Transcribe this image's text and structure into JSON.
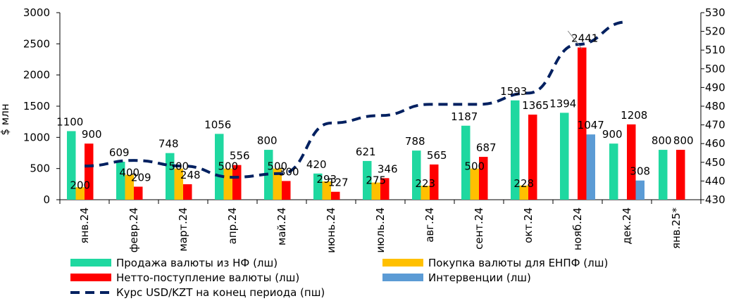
{
  "chart_data": {
    "type": "bar",
    "ylabel": "$ млн",
    "ylim": [
      0,
      3000
    ],
    "y_ticks": [
      0,
      500,
      1000,
      1500,
      2000,
      2500,
      3000
    ],
    "y2lim": [
      430,
      530
    ],
    "y2_ticks": [
      430,
      440,
      450,
      460,
      470,
      480,
      490,
      500,
      510,
      520,
      530
    ],
    "categories": [
      "янв.24",
      "февр.24",
      "март.24",
      "апр.24",
      "май.24",
      "июнь.24",
      "июль.24",
      "авг.24",
      "сент.24",
      "окт.24",
      "нояб.24",
      "дек.24",
      "янв.25*"
    ],
    "series": [
      {
        "name": "Продажа валюты из НФ (лш)",
        "color": "#1FD8A0",
        "axis": "left",
        "values": [
          1100,
          609,
          748,
          1056,
          800,
          420,
          621,
          788,
          1187,
          1593,
          1394,
          900,
          800
        ]
      },
      {
        "name": "Покупка валюты для ЕНПФ (лш)",
        "color": "#FFC000",
        "axis": "left",
        "values": [
          200,
          400,
          500,
          500,
          500,
          293,
          275,
          223,
          500,
          228,
          null,
          null,
          null
        ]
      },
      {
        "name": "Нетто-поступление валюты (лш)",
        "color": "#FF0000",
        "axis": "left",
        "values": [
          900,
          209,
          248,
          556,
          300,
          127,
          346,
          565,
          687,
          1365,
          2441,
          1208,
          800
        ]
      },
      {
        "name": "Интервенции (лш)",
        "color": "#5B9BD5",
        "axis": "left",
        "values": [
          null,
          null,
          null,
          null,
          null,
          null,
          null,
          null,
          null,
          null,
          1047,
          308,
          null
        ]
      },
      {
        "name": "Курс USD/KZT на конец периода (пш)",
        "color": "#002060",
        "axis": "right",
        "type": "line",
        "dashed": true,
        "values": [
          448,
          451,
          448,
          442,
          444,
          471,
          475,
          481,
          481,
          487,
          513,
          525,
          null
        ]
      }
    ],
    "legend_position": "bottom"
  }
}
